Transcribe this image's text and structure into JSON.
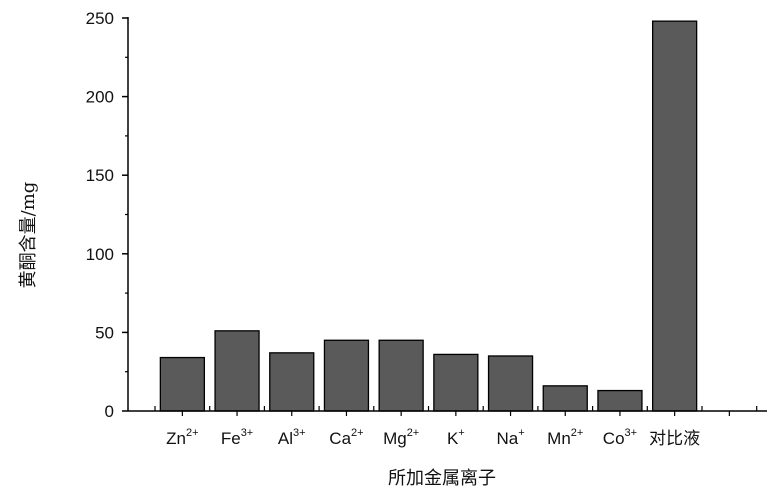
{
  "chart_data": {
    "type": "bar",
    "xlabel": "所加金属离子",
    "ylabel": "黄酮含量/mg",
    "ylim": [
      0,
      250
    ],
    "yticks": [
      0,
      50,
      100,
      150,
      200,
      250
    ],
    "categories": [
      {
        "base": "Zn",
        "sup": "2+"
      },
      {
        "base": "Fe",
        "sup": "3+"
      },
      {
        "base": "Al",
        "sup": "3+"
      },
      {
        "base": "Ca",
        "sup": "2+"
      },
      {
        "base": "Mg",
        "sup": "2+"
      },
      {
        "base": "K",
        "sup": "+"
      },
      {
        "base": "Na",
        "sup": "+"
      },
      {
        "base": "Mn",
        "sup": "2+"
      },
      {
        "base": "Co",
        "sup": "3+"
      },
      {
        "base": "对比液",
        "sup": ""
      }
    ],
    "values": [
      34,
      51,
      37,
      45,
      45,
      36,
      35,
      16,
      13,
      248
    ],
    "bar_color": "#5a5a5a",
    "grid": false
  }
}
